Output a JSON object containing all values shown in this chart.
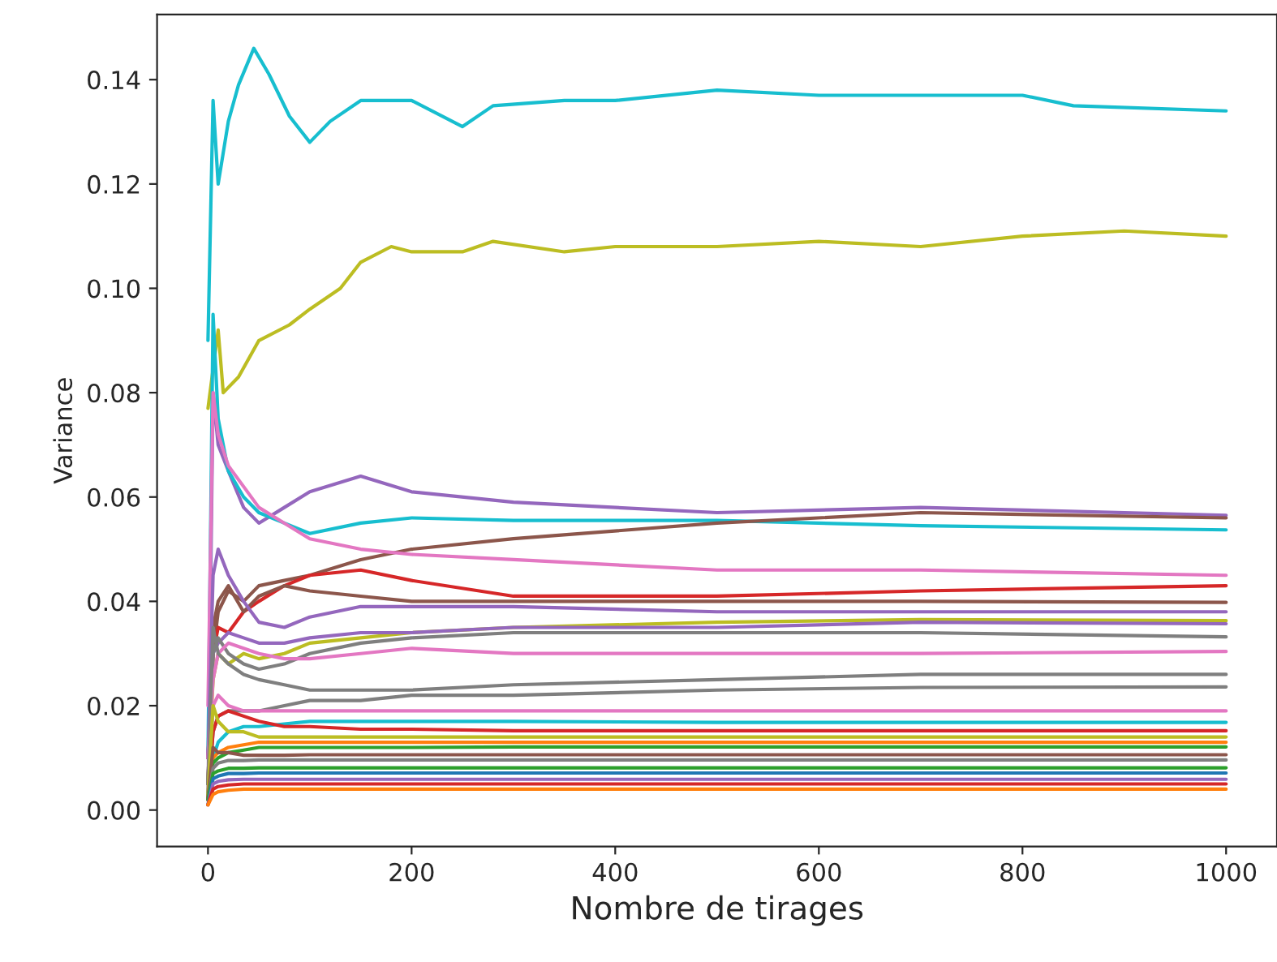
{
  "chart_data": {
    "type": "line",
    "xlabel": "Nombre de tirages",
    "ylabel": "Variance",
    "x": [
      0,
      5,
      10,
      20,
      35,
      50,
      75,
      100,
      150,
      200,
      300,
      500,
      700,
      1000
    ],
    "xlim": [
      -50,
      1050
    ],
    "ylim": [
      -0.007,
      0.1525
    ],
    "xticks": [
      0,
      200,
      400,
      600,
      800,
      1000
    ],
    "yticks": [
      {
        "value": 0,
        "label": "0.00"
      },
      {
        "value": 0.02,
        "label": "0.02"
      },
      {
        "value": 0.04,
        "label": "0.04"
      },
      {
        "value": 0.06,
        "label": "0.06"
      },
      {
        "value": 0.08,
        "label": "0.08"
      },
      {
        "value": 0.1,
        "label": "0.10"
      },
      {
        "value": 0.12,
        "label": "0.12"
      },
      {
        "value": 0.14,
        "label": "0.14"
      }
    ],
    "grid": false,
    "legend": false,
    "line_style": "solid",
    "marker": "none",
    "series": [
      {
        "color": "#17becf",
        "x": [
          0,
          5,
          10,
          20,
          30,
          45,
          60,
          80,
          100,
          120,
          150,
          200,
          250,
          280,
          350,
          400,
          500,
          600,
          700,
          800,
          850,
          1000
        ],
        "values": [
          0.09,
          0.136,
          0.12,
          0.132,
          0.139,
          0.146,
          0.141,
          0.133,
          0.128,
          0.132,
          0.136,
          0.136,
          0.131,
          0.135,
          0.136,
          0.136,
          0.138,
          0.137,
          0.137,
          0.137,
          0.135,
          0.134
        ]
      },
      {
        "color": "#bcbd22",
        "x": [
          0,
          10,
          15,
          30,
          50,
          80,
          100,
          130,
          150,
          180,
          200,
          250,
          280,
          350,
          400,
          500,
          600,
          700,
          800,
          900,
          1000
        ],
        "values": [
          0.077,
          0.092,
          0.08,
          0.083,
          0.09,
          0.093,
          0.096,
          0.1,
          0.105,
          0.108,
          0.107,
          0.107,
          0.109,
          0.107,
          0.108,
          0.108,
          0.109,
          0.108,
          0.11,
          0.111,
          0.11
        ]
      },
      {
        "color": "#9467bd",
        "values": [
          0.002,
          0.08,
          0.07,
          0.065,
          0.058,
          0.055,
          0.058,
          0.061,
          0.064,
          0.061,
          0.059,
          0.057,
          0.058,
          0.0565
        ]
      },
      {
        "color": "#17becf",
        "values": [
          0.01,
          0.095,
          0.075,
          0.065,
          0.06,
          0.057,
          0.055,
          0.053,
          0.055,
          0.056,
          0.0555,
          0.0555,
          0.0545,
          0.0537
        ]
      },
      {
        "color": "#8c564b",
        "values": [
          0.005,
          0.03,
          0.038,
          0.042,
          0.04,
          0.043,
          0.044,
          0.045,
          0.048,
          0.05,
          0.052,
          0.055,
          0.057,
          0.056
        ]
      },
      {
        "color": "#e377c2",
        "values": [
          0.02,
          0.08,
          0.072,
          0.066,
          0.062,
          0.058,
          0.055,
          0.052,
          0.05,
          0.049,
          0.048,
          0.046,
          0.046,
          0.045
        ]
      },
      {
        "color": "#d62728",
        "values": [
          0.01,
          0.03,
          0.035,
          0.034,
          0.038,
          0.04,
          0.043,
          0.045,
          0.046,
          0.044,
          0.041,
          0.041,
          0.042,
          0.043
        ]
      },
      {
        "color": "#8c564b",
        "values": [
          0.005,
          0.035,
          0.04,
          0.043,
          0.038,
          0.041,
          0.043,
          0.042,
          0.041,
          0.04,
          0.04,
          0.04,
          0.04,
          0.0398
        ]
      },
      {
        "color": "#9467bd",
        "values": [
          0.01,
          0.045,
          0.05,
          0.045,
          0.04,
          0.036,
          0.035,
          0.037,
          0.039,
          0.039,
          0.039,
          0.038,
          0.038,
          0.038
        ]
      },
      {
        "color": "#bcbd22",
        "values": [
          0.005,
          0.025,
          0.03,
          0.028,
          0.03,
          0.029,
          0.03,
          0.032,
          0.033,
          0.034,
          0.035,
          0.036,
          0.0365,
          0.0363
        ]
      },
      {
        "color": "#9467bd",
        "values": [
          0.01,
          0.03,
          0.032,
          0.034,
          0.033,
          0.032,
          0.032,
          0.033,
          0.034,
          0.034,
          0.035,
          0.035,
          0.036,
          0.0357
        ]
      },
      {
        "color": "#7f7f7f",
        "values": [
          0.005,
          0.03,
          0.033,
          0.03,
          0.028,
          0.027,
          0.028,
          0.03,
          0.032,
          0.033,
          0.034,
          0.034,
          0.034,
          0.0332
        ]
      },
      {
        "color": "#e377c2",
        "values": [
          0.01,
          0.025,
          0.03,
          0.032,
          0.031,
          0.03,
          0.029,
          0.029,
          0.03,
          0.031,
          0.03,
          0.03,
          0.03,
          0.0304
        ]
      },
      {
        "color": "#7f7f7f",
        "values": [
          0.005,
          0.035,
          0.03,
          0.028,
          0.026,
          0.025,
          0.024,
          0.023,
          0.023,
          0.023,
          0.024,
          0.025,
          0.026,
          0.026
        ]
      },
      {
        "color": "#7f7f7f",
        "values": [
          0.003,
          0.015,
          0.018,
          0.019,
          0.019,
          0.019,
          0.02,
          0.021,
          0.021,
          0.022,
          0.022,
          0.023,
          0.0235,
          0.0236
        ]
      },
      {
        "color": "#e377c2",
        "values": [
          0.002,
          0.02,
          0.022,
          0.02,
          0.019,
          0.019,
          0.019,
          0.019,
          0.019,
          0.019,
          0.019,
          0.019,
          0.019,
          0.019
        ]
      },
      {
        "color": "#17becf",
        "values": [
          0.003,
          0.01,
          0.013,
          0.015,
          0.016,
          0.016,
          0.0165,
          0.017,
          0.017,
          0.017,
          0.017,
          0.0168,
          0.0168,
          0.0168
        ]
      },
      {
        "color": "#d62728",
        "values": [
          0.002,
          0.015,
          0.018,
          0.019,
          0.018,
          0.017,
          0.016,
          0.016,
          0.0155,
          0.0155,
          0.0152,
          0.0152,
          0.0152,
          0.0152
        ]
      },
      {
        "color": "#bcbd22",
        "values": [
          0.003,
          0.02,
          0.017,
          0.015,
          0.015,
          0.014,
          0.014,
          0.014,
          0.014,
          0.014,
          0.014,
          0.014,
          0.014,
          0.014
        ]
      },
      {
        "color": "#ff7f0e",
        "values": [
          0.002,
          0.01,
          0.011,
          0.012,
          0.0125,
          0.013,
          0.013,
          0.013,
          0.013,
          0.013,
          0.013,
          0.013,
          0.013,
          0.013
        ]
      },
      {
        "color": "#2ca02c",
        "values": [
          0.002,
          0.009,
          0.01,
          0.011,
          0.0115,
          0.012,
          0.012,
          0.012,
          0.012,
          0.012,
          0.0121,
          0.0121,
          0.0121,
          0.0121
        ]
      },
      {
        "color": "#8c564b",
        "values": [
          0.002,
          0.012,
          0.011,
          0.011,
          0.0105,
          0.0105,
          0.0105,
          0.0106,
          0.0106,
          0.0106,
          0.0106,
          0.0106,
          0.0106,
          0.0106
        ]
      },
      {
        "color": "#7f7f7f",
        "values": [
          0.002,
          0.008,
          0.009,
          0.0095,
          0.0095,
          0.0096,
          0.0096,
          0.0096,
          0.0096,
          0.0096,
          0.0096,
          0.0096,
          0.0096,
          0.0096
        ]
      },
      {
        "color": "#2ca02c",
        "values": [
          0.002,
          0.007,
          0.0075,
          0.008,
          0.008,
          0.0081,
          0.0081,
          0.0081,
          0.0081,
          0.0081,
          0.0081,
          0.0081,
          0.0081,
          0.0081
        ]
      },
      {
        "color": "#1f77b4",
        "values": [
          0.001,
          0.006,
          0.0065,
          0.007,
          0.007,
          0.0071,
          0.0071,
          0.0071,
          0.0071,
          0.0071,
          0.0071,
          0.0071,
          0.0071,
          0.0071
        ]
      },
      {
        "color": "#9467bd",
        "values": [
          0.001,
          0.005,
          0.0055,
          0.0058,
          0.0059,
          0.0059,
          0.0059,
          0.0059,
          0.0059,
          0.0059,
          0.0059,
          0.0059,
          0.0059,
          0.0059
        ]
      },
      {
        "color": "#d62728",
        "values": [
          0.001,
          0.004,
          0.0045,
          0.0048,
          0.005,
          0.005,
          0.005,
          0.005,
          0.005,
          0.005,
          0.005,
          0.005,
          0.005,
          0.005
        ]
      },
      {
        "color": "#ff7f0e",
        "values": [
          0.001,
          0.003,
          0.0035,
          0.0038,
          0.004,
          0.004,
          0.004,
          0.004,
          0.004,
          0.004,
          0.004,
          0.004,
          0.004,
          0.004
        ]
      }
    ]
  }
}
